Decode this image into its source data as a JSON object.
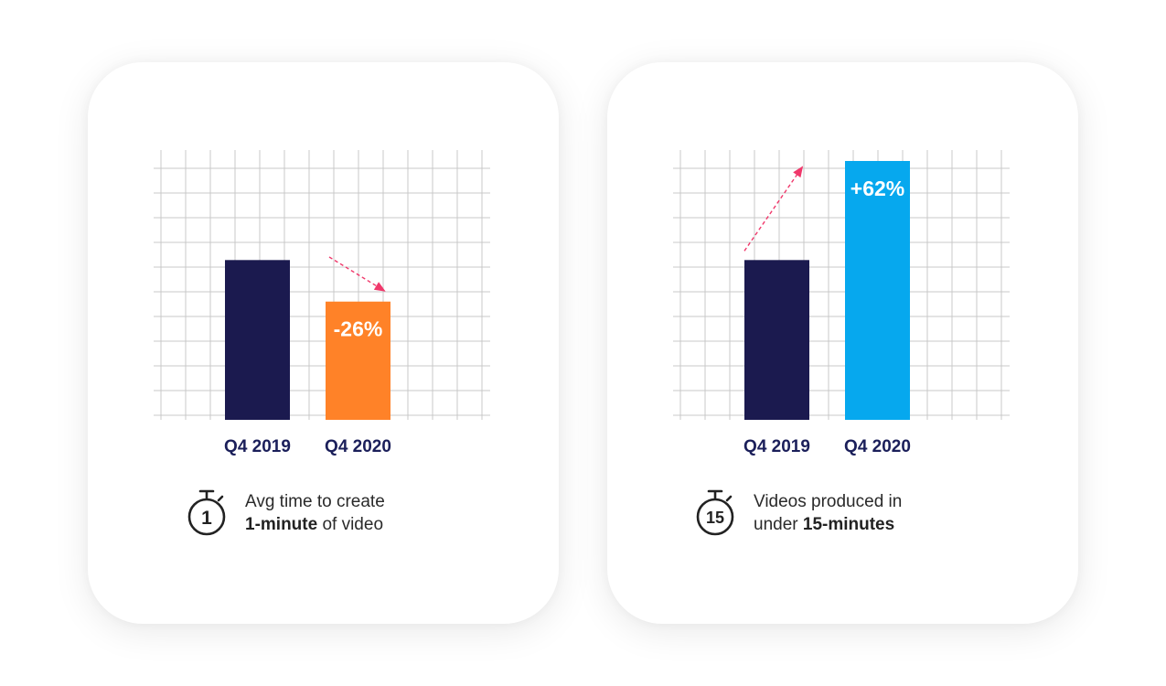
{
  "colors": {
    "q4_2019": "#1b1a4f",
    "decrease": "#ff8228",
    "increase": "#06a8ee",
    "trend_arrow": "#f0386b",
    "grid": "#c9c9c9"
  },
  "cards": [
    {
      "timer_number": "1",
      "caption_line1": "Avg time to create",
      "caption_bold": "1-minute",
      "caption_rest": " of video",
      "caption_lead": ""
    },
    {
      "timer_number": "15",
      "caption_line1": "Videos produced in",
      "caption_lead": "under ",
      "caption_bold": "15-minutes",
      "caption_rest": ""
    }
  ],
  "chart_data": [
    {
      "type": "bar",
      "categories": [
        "Q4 2019",
        "Q4 2020"
      ],
      "values": [
        100,
        74
      ],
      "bar_labels": [
        "",
        "-26%"
      ],
      "bar_colors": [
        "#1b1a4f",
        "#ff8228"
      ],
      "trend": "down",
      "ylim": [
        0,
        162
      ],
      "grid": true
    },
    {
      "type": "bar",
      "categories": [
        "Q4 2019",
        "Q4 2020"
      ],
      "values": [
        100,
        162
      ],
      "bar_labels": [
        "",
        "+62%"
      ],
      "bar_colors": [
        "#1b1a4f",
        "#06a8ee"
      ],
      "trend": "up",
      "ylim": [
        0,
        162
      ],
      "grid": true
    }
  ]
}
